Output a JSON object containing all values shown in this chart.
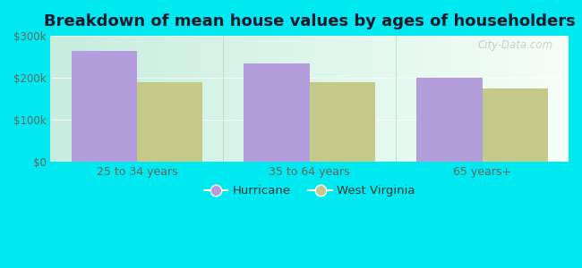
{
  "title": "Breakdown of mean house values by ages of householders",
  "categories": [
    "25 to 34 years",
    "35 to 64 years",
    "65 years+"
  ],
  "hurricane_values": [
    265000,
    235000,
    200000
  ],
  "wv_values": [
    190000,
    190000,
    175000
  ],
  "hurricane_color": "#b39ddb",
  "wv_color": "#c5c98a",
  "background_outer": "#00e8f0",
  "background_inner_left": "#b2dfdb",
  "background_inner_right": "#f0f8f0",
  "ylim": [
    0,
    300000
  ],
  "yticks": [
    0,
    100000,
    200000,
    300000
  ],
  "ytick_labels": [
    "$0",
    "$100k",
    "$200k",
    "$300k"
  ],
  "legend_hurricane": "Hurricane",
  "legend_wv": "West Virginia",
  "bar_width": 0.38,
  "title_fontsize": 13,
  "watermark": "City-Data.com"
}
